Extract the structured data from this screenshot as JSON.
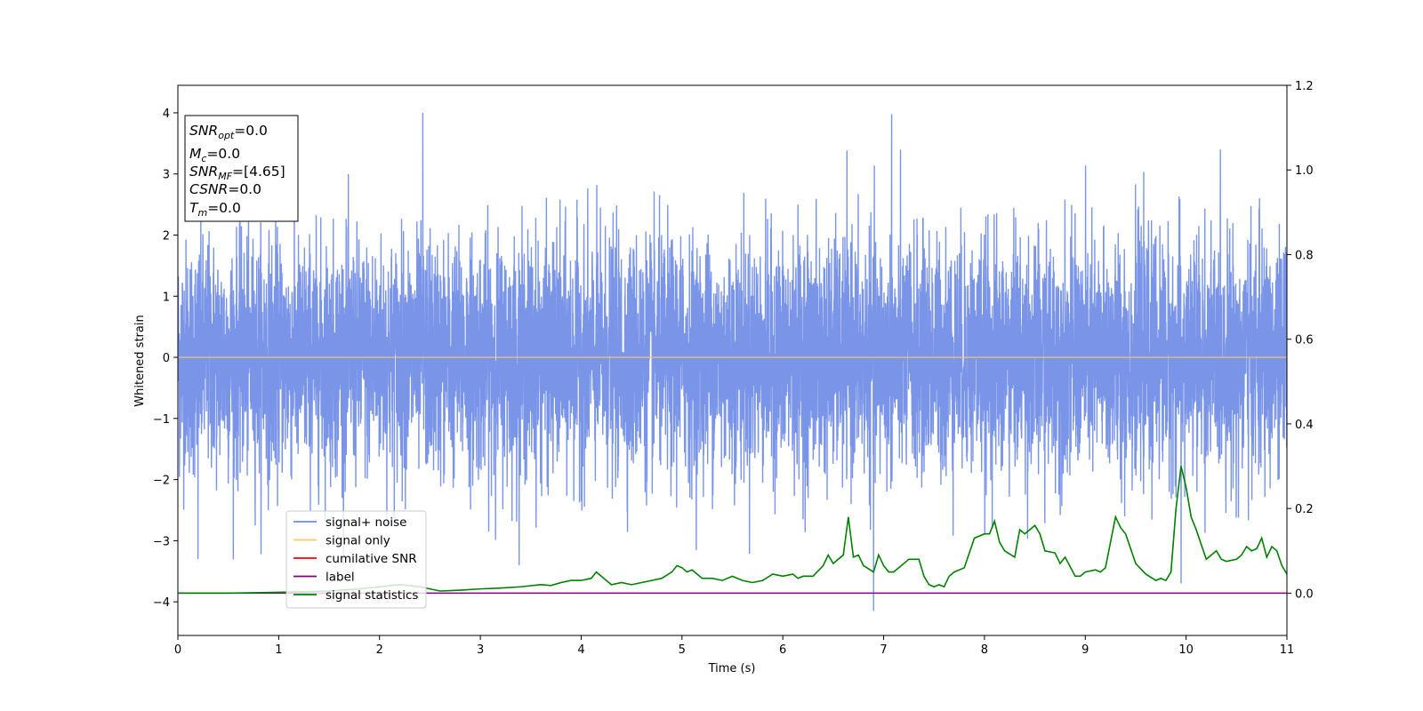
{
  "chart_data": {
    "type": "line",
    "xlabel": "Time (s)",
    "ylabel": "Whitened strain",
    "xlim": [
      0,
      11
    ],
    "ylim": [
      -4.55,
      4.45
    ],
    "y2lim": [
      -0.1,
      1.2
    ],
    "x_ticks": [
      "0",
      "1",
      "2",
      "3",
      "4",
      "5",
      "6",
      "7",
      "8",
      "9",
      "10",
      "11"
    ],
    "y_ticks": [
      "−4",
      "−3",
      "−2",
      "−1",
      "0",
      "1",
      "2",
      "3",
      "4"
    ],
    "y2_ticks": [
      "0.0",
      "0.2",
      "0.4",
      "0.6",
      "0.8",
      "1.0",
      "1.2"
    ],
    "grid": false,
    "legend_position": "lower-left",
    "info_box": {
      "snr_opt": {
        "main": "SNR",
        "sub": "opt",
        "value": "=0.0"
      },
      "mc": {
        "main": "M",
        "sub": "c",
        "value": "=0.0"
      },
      "snr_mf": {
        "main": "SNR",
        "sub": "MF",
        "value": "=[4.65]"
      },
      "csnr": {
        "main": "CSNR",
        "value": "=0.0"
      },
      "tm": {
        "main": "T",
        "sub": "m",
        "value": "=0.0"
      }
    },
    "series": [
      {
        "name": "signal+ noise",
        "axis": "left",
        "color": "#6f8ce6",
        "description_values": "whitened noise, roughly unit-variance random samples from t=0 to 11 s with peaks near ±4",
        "peaks": [
          {
            "x": 0.2,
            "y": -3.3
          },
          {
            "x": 2.43,
            "y": 4.0
          },
          {
            "x": 6.9,
            "y": -4.15
          },
          {
            "x": 7.08,
            "y": 3.98
          },
          {
            "x": 9.95,
            "y": -3.7
          }
        ]
      },
      {
        "name": "signal only",
        "axis": "left",
        "color": "#ffc864",
        "x": [
          0,
          11
        ],
        "y": [
          0,
          0
        ]
      },
      {
        "name": "cumilative SNR",
        "axis": "right",
        "color": "#ff0000",
        "x": [],
        "y": []
      },
      {
        "name": "label",
        "axis": "right",
        "color": "#800080",
        "x": [
          0,
          11
        ],
        "y": [
          0,
          0
        ]
      },
      {
        "name": "signal statistics",
        "axis": "right",
        "color": "#008000",
        "x": [
          0,
          0.5,
          1.0,
          1.5,
          1.8,
          2.0,
          2.2,
          2.4,
          2.5,
          2.6,
          2.8,
          3.0,
          3.2,
          3.4,
          3.6,
          3.7,
          3.8,
          3.9,
          4.0,
          4.1,
          4.15,
          4.2,
          4.3,
          4.4,
          4.5,
          4.6,
          4.7,
          4.8,
          4.9,
          4.95,
          5.0,
          5.05,
          5.1,
          5.2,
          5.3,
          5.4,
          5.5,
          5.6,
          5.7,
          5.8,
          5.9,
          6.0,
          6.1,
          6.15,
          6.2,
          6.3,
          6.4,
          6.45,
          6.5,
          6.6,
          6.65,
          6.7,
          6.75,
          6.8,
          6.9,
          6.95,
          7.0,
          7.05,
          7.1,
          7.2,
          7.25,
          7.3,
          7.35,
          7.4,
          7.45,
          7.5,
          7.55,
          7.6,
          7.65,
          7.7,
          7.8,
          7.9,
          8.0,
          8.05,
          8.1,
          8.15,
          8.2,
          8.3,
          8.35,
          8.4,
          8.5,
          8.55,
          8.6,
          8.7,
          8.75,
          8.8,
          8.9,
          8.95,
          9.0,
          9.1,
          9.15,
          9.2,
          9.25,
          9.3,
          9.35,
          9.4,
          9.45,
          9.5,
          9.6,
          9.7,
          9.75,
          9.8,
          9.85,
          9.9,
          9.95,
          10.0,
          10.05,
          10.1,
          10.2,
          10.3,
          10.35,
          10.4,
          10.5,
          10.55,
          10.6,
          10.65,
          10.7,
          10.75,
          10.8,
          10.85,
          10.9,
          10.95,
          11.0
        ],
        "y": [
          0.0,
          0.0,
          0.002,
          0.005,
          0.01,
          0.015,
          0.02,
          0.015,
          0.01,
          0.005,
          0.007,
          0.01,
          0.012,
          0.015,
          0.02,
          0.018,
          0.025,
          0.03,
          0.03,
          0.035,
          0.05,
          0.04,
          0.02,
          0.025,
          0.02,
          0.025,
          0.03,
          0.035,
          0.05,
          0.065,
          0.06,
          0.05,
          0.055,
          0.035,
          0.035,
          0.03,
          0.04,
          0.03,
          0.025,
          0.03,
          0.045,
          0.04,
          0.045,
          0.035,
          0.04,
          0.04,
          0.065,
          0.09,
          0.07,
          0.09,
          0.18,
          0.085,
          0.09,
          0.065,
          0.05,
          0.09,
          0.065,
          0.05,
          0.05,
          0.07,
          0.08,
          0.08,
          0.08,
          0.04,
          0.02,
          0.015,
          0.02,
          0.015,
          0.04,
          0.05,
          0.06,
          0.13,
          0.14,
          0.14,
          0.17,
          0.12,
          0.1,
          0.085,
          0.15,
          0.14,
          0.16,
          0.14,
          0.1,
          0.095,
          0.07,
          0.085,
          0.04,
          0.04,
          0.05,
          0.055,
          0.05,
          0.06,
          0.12,
          0.18,
          0.155,
          0.14,
          0.105,
          0.07,
          0.045,
          0.03,
          0.035,
          0.03,
          0.05,
          0.2,
          0.3,
          0.25,
          0.18,
          0.15,
          0.08,
          0.1,
          0.08,
          0.075,
          0.08,
          0.09,
          0.11,
          0.1,
          0.105,
          0.13,
          0.085,
          0.11,
          0.1,
          0.065,
          0.045
        ]
      }
    ]
  }
}
